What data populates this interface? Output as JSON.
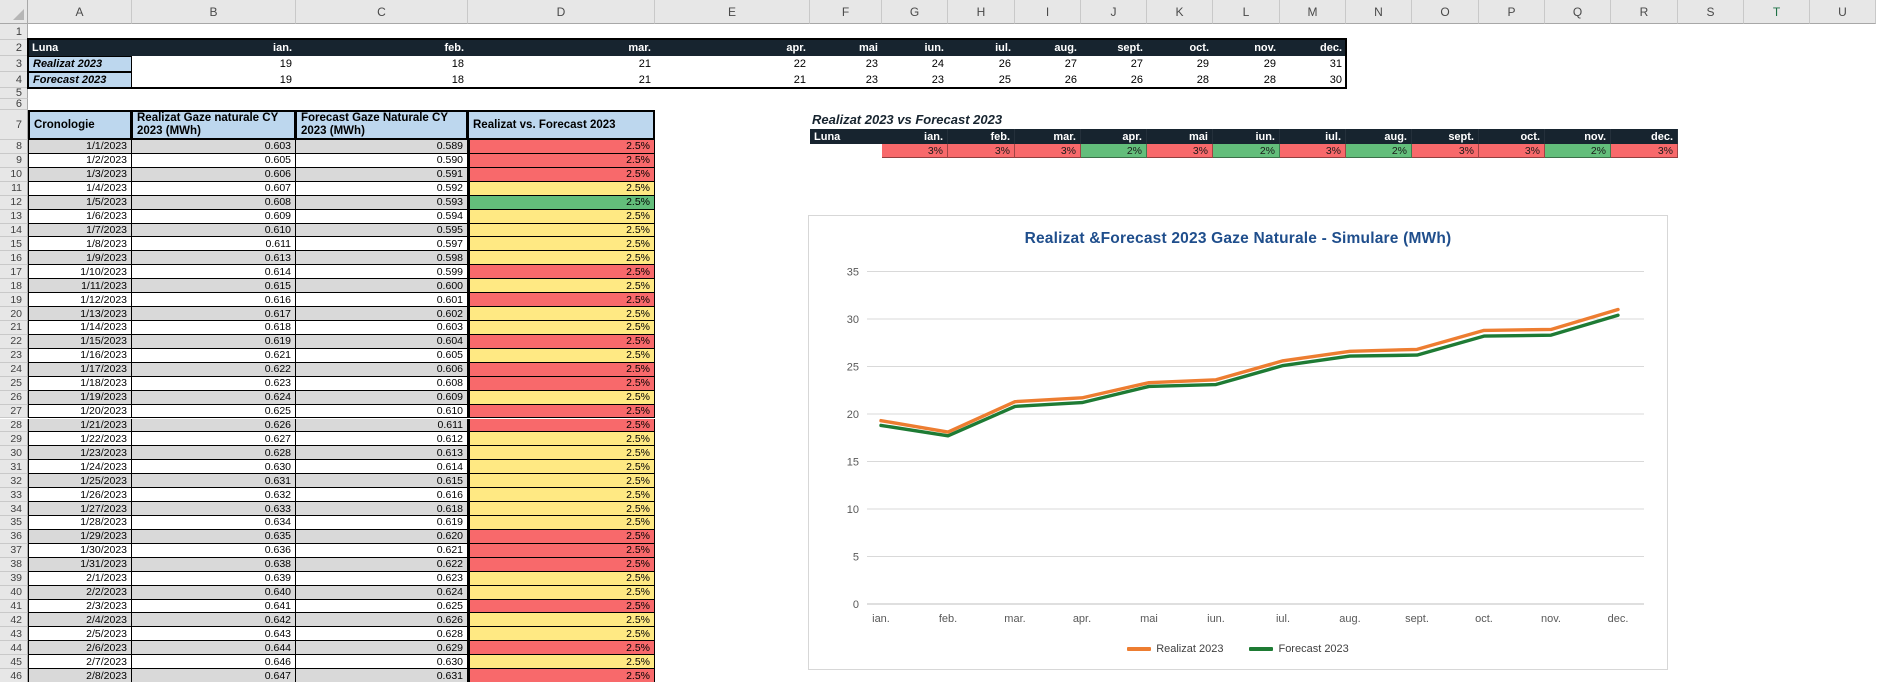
{
  "colors": {
    "navy_header": "#17242F",
    "light_blue_header": "#BDD7EE",
    "band_grey": "#D9D9D9",
    "status_red": "#F8696B",
    "status_yellow": "#FFE983",
    "status_green": "#63BE7B",
    "chart_title_blue": "#1F4E8C",
    "realizat_orange": "#ED7D31",
    "forecast_green": "#1E7B34"
  },
  "spreadsheet": {
    "column_letters": [
      "A",
      "B",
      "C",
      "D",
      "E",
      "F",
      "G",
      "H",
      "I",
      "J",
      "K",
      "L",
      "M",
      "N",
      "O",
      "P",
      "Q",
      "R",
      "S",
      "T",
      "U"
    ],
    "active_column_letter": "T",
    "row_count": 46
  },
  "top_table": {
    "header_label": "Luna",
    "months": [
      "ian.",
      "feb.",
      "mar.",
      "apr.",
      "mai",
      "iun.",
      "iul.",
      "aug.",
      "sept.",
      "oct.",
      "nov.",
      "dec."
    ],
    "rows": [
      {
        "label": "Realizat 2023",
        "values": [
          "19",
          "18",
          "21",
          "22",
          "23",
          "24",
          "26",
          "27",
          "27",
          "29",
          "29",
          "31"
        ]
      },
      {
        "label": "Forecast 2023",
        "values": [
          "19",
          "18",
          "21",
          "21",
          "23",
          "23",
          "25",
          "26",
          "26",
          "28",
          "28",
          "30"
        ]
      }
    ]
  },
  "daily_table": {
    "headers": [
      "Cronologie",
      "Realizat Gaze naturale CY 2023 (MWh)",
      "Forecast Gaze Naturale CY 2023 (MWh)",
      "Realizat vs. Forecast 2023"
    ],
    "rows": [
      [
        8,
        "1/1/2023",
        "0.603",
        "0.589",
        "2.5%",
        "red"
      ],
      [
        9,
        "1/2/2023",
        "0.605",
        "0.590",
        "2.5%",
        "red"
      ],
      [
        10,
        "1/3/2023",
        "0.606",
        "0.591",
        "2.5%",
        "red"
      ],
      [
        11,
        "1/4/2023",
        "0.607",
        "0.592",
        "2.5%",
        "yellow"
      ],
      [
        12,
        "1/5/2023",
        "0.608",
        "0.593",
        "2.5%",
        "green"
      ],
      [
        13,
        "1/6/2023",
        "0.609",
        "0.594",
        "2.5%",
        "yellow"
      ],
      [
        14,
        "1/7/2023",
        "0.610",
        "0.595",
        "2.5%",
        "yellow"
      ],
      [
        15,
        "1/8/2023",
        "0.611",
        "0.597",
        "2.5%",
        "yellow"
      ],
      [
        16,
        "1/9/2023",
        "0.613",
        "0.598",
        "2.5%",
        "yellow"
      ],
      [
        17,
        "1/10/2023",
        "0.614",
        "0.599",
        "2.5%",
        "red"
      ],
      [
        18,
        "1/11/2023",
        "0.615",
        "0.600",
        "2.5%",
        "yellow"
      ],
      [
        19,
        "1/12/2023",
        "0.616",
        "0.601",
        "2.5%",
        "red"
      ],
      [
        20,
        "1/13/2023",
        "0.617",
        "0.602",
        "2.5%",
        "yellow"
      ],
      [
        21,
        "1/14/2023",
        "0.618",
        "0.603",
        "2.5%",
        "yellow"
      ],
      [
        22,
        "1/15/2023",
        "0.619",
        "0.604",
        "2.5%",
        "red"
      ],
      [
        23,
        "1/16/2023",
        "0.621",
        "0.605",
        "2.5%",
        "yellow"
      ],
      [
        24,
        "1/17/2023",
        "0.622",
        "0.606",
        "2.5%",
        "red"
      ],
      [
        25,
        "1/18/2023",
        "0.623",
        "0.608",
        "2.5%",
        "red"
      ],
      [
        26,
        "1/19/2023",
        "0.624",
        "0.609",
        "2.5%",
        "yellow"
      ],
      [
        27,
        "1/20/2023",
        "0.625",
        "0.610",
        "2.5%",
        "red"
      ],
      [
        28,
        "1/21/2023",
        "0.626",
        "0.611",
        "2.5%",
        "red"
      ],
      [
        29,
        "1/22/2023",
        "0.627",
        "0.612",
        "2.5%",
        "yellow"
      ],
      [
        30,
        "1/23/2023",
        "0.628",
        "0.613",
        "2.5%",
        "yellow"
      ],
      [
        31,
        "1/24/2023",
        "0.630",
        "0.614",
        "2.5%",
        "yellow"
      ],
      [
        32,
        "1/25/2023",
        "0.631",
        "0.615",
        "2.5%",
        "yellow"
      ],
      [
        33,
        "1/26/2023",
        "0.632",
        "0.616",
        "2.5%",
        "yellow"
      ],
      [
        34,
        "1/27/2023",
        "0.633",
        "0.618",
        "2.5%",
        "yellow"
      ],
      [
        35,
        "1/28/2023",
        "0.634",
        "0.619",
        "2.5%",
        "yellow"
      ],
      [
        36,
        "1/29/2023",
        "0.635",
        "0.620",
        "2.5%",
        "red"
      ],
      [
        37,
        "1/30/2023",
        "0.636",
        "0.621",
        "2.5%",
        "red"
      ],
      [
        38,
        "1/31/2023",
        "0.638",
        "0.622",
        "2.5%",
        "red"
      ],
      [
        39,
        "2/1/2023",
        "0.639",
        "0.623",
        "2.5%",
        "yellow"
      ],
      [
        40,
        "2/2/2023",
        "0.640",
        "0.624",
        "2.5%",
        "yellow"
      ],
      [
        41,
        "2/3/2023",
        "0.641",
        "0.625",
        "2.5%",
        "red"
      ],
      [
        42,
        "2/4/2023",
        "0.642",
        "0.626",
        "2.5%",
        "yellow"
      ],
      [
        43,
        "2/5/2023",
        "0.643",
        "0.628",
        "2.5%",
        "yellow"
      ],
      [
        44,
        "2/6/2023",
        "0.644",
        "0.629",
        "2.5%",
        "red"
      ],
      [
        45,
        "2/7/2023",
        "0.646",
        "0.630",
        "2.5%",
        "yellow"
      ],
      [
        46,
        "2/8/2023",
        "0.647",
        "0.631",
        "2.5%",
        "red"
      ]
    ]
  },
  "comparison": {
    "title": "Realizat 2023 vs Forecast 2023",
    "header_label": "Luna",
    "months": [
      "ian.",
      "feb.",
      "mar.",
      "apr.",
      "mai",
      "iun.",
      "iul.",
      "aug.",
      "sept.",
      "oct.",
      "nov.",
      "dec."
    ],
    "values": [
      "3%",
      "3%",
      "3%",
      "2%",
      "3%",
      "2%",
      "3%",
      "2%",
      "3%",
      "3%",
      "2%",
      "3%"
    ],
    "statuses": [
      "red",
      "red",
      "red",
      "green",
      "red",
      "green",
      "red",
      "green",
      "red",
      "red",
      "green",
      "red"
    ]
  },
  "chart_data": {
    "type": "line",
    "title": "Realizat &Forecast 2023 Gaze Naturale - Simulare (MWh)",
    "categories": [
      "ian.",
      "feb.",
      "mar.",
      "apr.",
      "mai",
      "iun.",
      "iul.",
      "aug.",
      "sept.",
      "oct.",
      "nov.",
      "dec."
    ],
    "series": [
      {
        "name": "Realizat 2023",
        "color": "#ED7D31",
        "values": [
          19.3,
          18.1,
          21.3,
          21.7,
          23.3,
          23.6,
          25.6,
          26.6,
          26.8,
          28.8,
          28.9,
          31.0
        ]
      },
      {
        "name": "Forecast 2023",
        "color": "#1E7B34",
        "values": [
          18.8,
          17.7,
          20.8,
          21.2,
          22.9,
          23.1,
          25.1,
          26.1,
          26.2,
          28.2,
          28.3,
          30.4
        ]
      }
    ],
    "ylim": [
      0,
      35
    ],
    "yticks": [
      0,
      5,
      10,
      15,
      20,
      25,
      30,
      35
    ],
    "grid": true,
    "legend_position": "bottom",
    "xlabel": "",
    "ylabel": ""
  }
}
